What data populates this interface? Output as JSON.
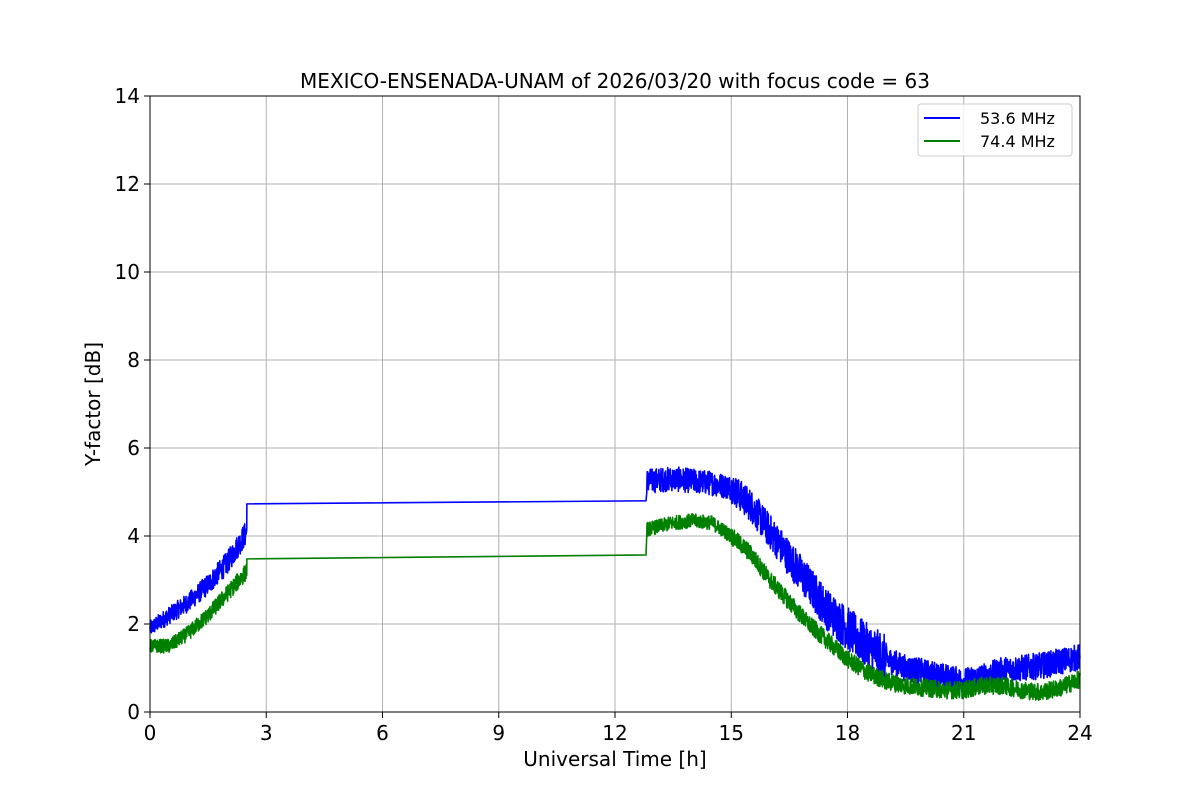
{
  "chart_data": {
    "type": "line",
    "title": "MEXICO-ENSENADA-UNAM of 2026/03/20 with focus code = 63",
    "xlabel": "Universal Time [h]",
    "ylabel": "Y-factor [dB]",
    "xlim": [
      0,
      24
    ],
    "ylim": [
      0,
      14
    ],
    "xticks": [
      0,
      3,
      6,
      9,
      12,
      15,
      18,
      21,
      24
    ],
    "yticks": [
      0,
      2,
      4,
      6,
      8,
      10,
      12,
      14
    ],
    "xtick_labels": [
      "0",
      "3",
      "6",
      "9",
      "12",
      "15",
      "18",
      "21",
      "24"
    ],
    "ytick_labels": [
      "0",
      "2",
      "4",
      "6",
      "8",
      "10",
      "12",
      "14"
    ],
    "grid": true,
    "legend_position": "upper-right",
    "series": [
      {
        "name": "53.6 MHz",
        "color": "#0000ff",
        "noise_amplitude": [
          0.25,
          0.25,
          0.25,
          0.3,
          0.35,
          0.5,
          0.55,
          0.5,
          0.45,
          0.4
        ],
        "x": [
          0,
          0.5,
          1.0,
          1.5,
          2.0,
          2.5,
          2.52,
          12.8,
          12.82,
          13.5,
          14.0,
          14.5,
          15.0,
          15.5,
          16.0,
          16.5,
          17.0,
          17.5,
          18.0,
          18.5,
          19.0,
          19.5,
          20.0,
          20.5,
          21.0,
          21.5,
          22.0,
          22.5,
          23.0,
          23.5,
          24.0
        ],
        "y": [
          1.9,
          2.2,
          2.5,
          2.9,
          3.4,
          4.1,
          4.73,
          4.8,
          5.25,
          5.3,
          5.25,
          5.2,
          5.1,
          4.7,
          4.1,
          3.5,
          2.9,
          2.3,
          1.9,
          1.5,
          1.2,
          1.0,
          0.9,
          0.8,
          0.7,
          0.8,
          0.95,
          1.0,
          1.05,
          1.15,
          1.25
        ],
        "gap": [
          2.5,
          12.8
        ]
      },
      {
        "name": "74.4 MHz",
        "color": "#008000",
        "x": [
          0,
          0.5,
          1.0,
          1.5,
          2.0,
          2.5,
          2.52,
          12.8,
          12.82,
          13.5,
          14.0,
          14.5,
          15.0,
          15.5,
          16.0,
          16.5,
          17.0,
          17.5,
          18.0,
          18.5,
          19.0,
          19.5,
          20.0,
          20.5,
          21.0,
          21.5,
          22.0,
          22.5,
          23.0,
          23.5,
          24.0
        ],
        "y": [
          1.5,
          1.5,
          1.8,
          2.2,
          2.7,
          3.2,
          3.48,
          3.57,
          4.15,
          4.3,
          4.35,
          4.3,
          4.0,
          3.6,
          3.0,
          2.5,
          2.0,
          1.6,
          1.2,
          0.9,
          0.7,
          0.6,
          0.55,
          0.5,
          0.5,
          0.6,
          0.6,
          0.5,
          0.45,
          0.55,
          0.75
        ],
        "gap": [
          2.5,
          12.8
        ]
      }
    ]
  }
}
